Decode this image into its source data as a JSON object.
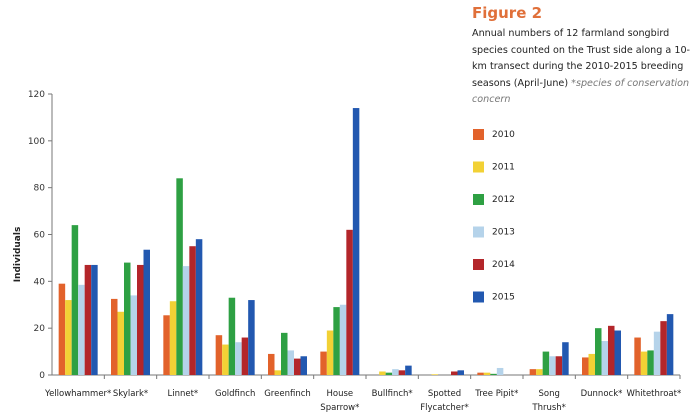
{
  "figure_label": "Figure 2",
  "caption": "Annual numbers of 12 farmland songbird species counted on the Trust side along a 10-km transect during the 2010-2015 breeding seasons (April-June)",
  "caption_note": "*species of conservation concern",
  "chart_data": {
    "type": "bar",
    "title": "",
    "xlabel": "",
    "ylabel": "Individuals",
    "ylim": [
      0,
      120
    ],
    "yticks": [
      0,
      20,
      40,
      60,
      80,
      100,
      120
    ],
    "grid": false,
    "legend_placement": "right",
    "categories": [
      [
        "Yellowhammer*"
      ],
      [
        "Skylark*"
      ],
      [
        "Linnet*"
      ],
      [
        "Goldfinch"
      ],
      [
        "Greenfinch"
      ],
      [
        "House",
        "Sparrow*"
      ],
      [
        "Bullfinch*"
      ],
      [
        "Spotted",
        "Flycatcher*"
      ],
      [
        "Tree Pipit*"
      ],
      [
        "Song",
        "Thrush*"
      ],
      [
        "Dunnock*"
      ],
      [
        "Whitethroat*"
      ]
    ],
    "series": [
      {
        "name": "2010",
        "color": "#e2622b",
        "values": [
          39,
          32.5,
          25.5,
          17,
          9,
          10,
          0,
          0,
          1,
          2.5,
          7.5,
          16
        ]
      },
      {
        "name": "2011",
        "color": "#f2d135",
        "values": [
          32,
          27,
          31.5,
          13,
          2,
          19,
          1.5,
          0.3,
          1,
          2.5,
          9,
          10
        ]
      },
      {
        "name": "2012",
        "color": "#2ea043",
        "values": [
          64,
          48,
          84,
          33,
          18,
          29,
          1,
          0,
          0.5,
          10,
          20,
          10.5
        ]
      },
      {
        "name": "2013",
        "color": "#b5d3ea",
        "values": [
          38.5,
          34,
          46.5,
          14,
          10.5,
          30,
          2.5,
          0,
          3,
          8,
          14.5,
          18.5
        ]
      },
      {
        "name": "2014",
        "color": "#b3262a",
        "values": [
          47,
          47,
          55,
          16,
          7,
          62,
          2,
          1.5,
          0,
          8,
          21,
          23
        ]
      },
      {
        "name": "2015",
        "color": "#2258b0",
        "values": [
          47,
          53.5,
          58,
          32,
          8,
          114,
          4,
          2,
          0,
          14,
          19,
          26
        ]
      }
    ]
  }
}
